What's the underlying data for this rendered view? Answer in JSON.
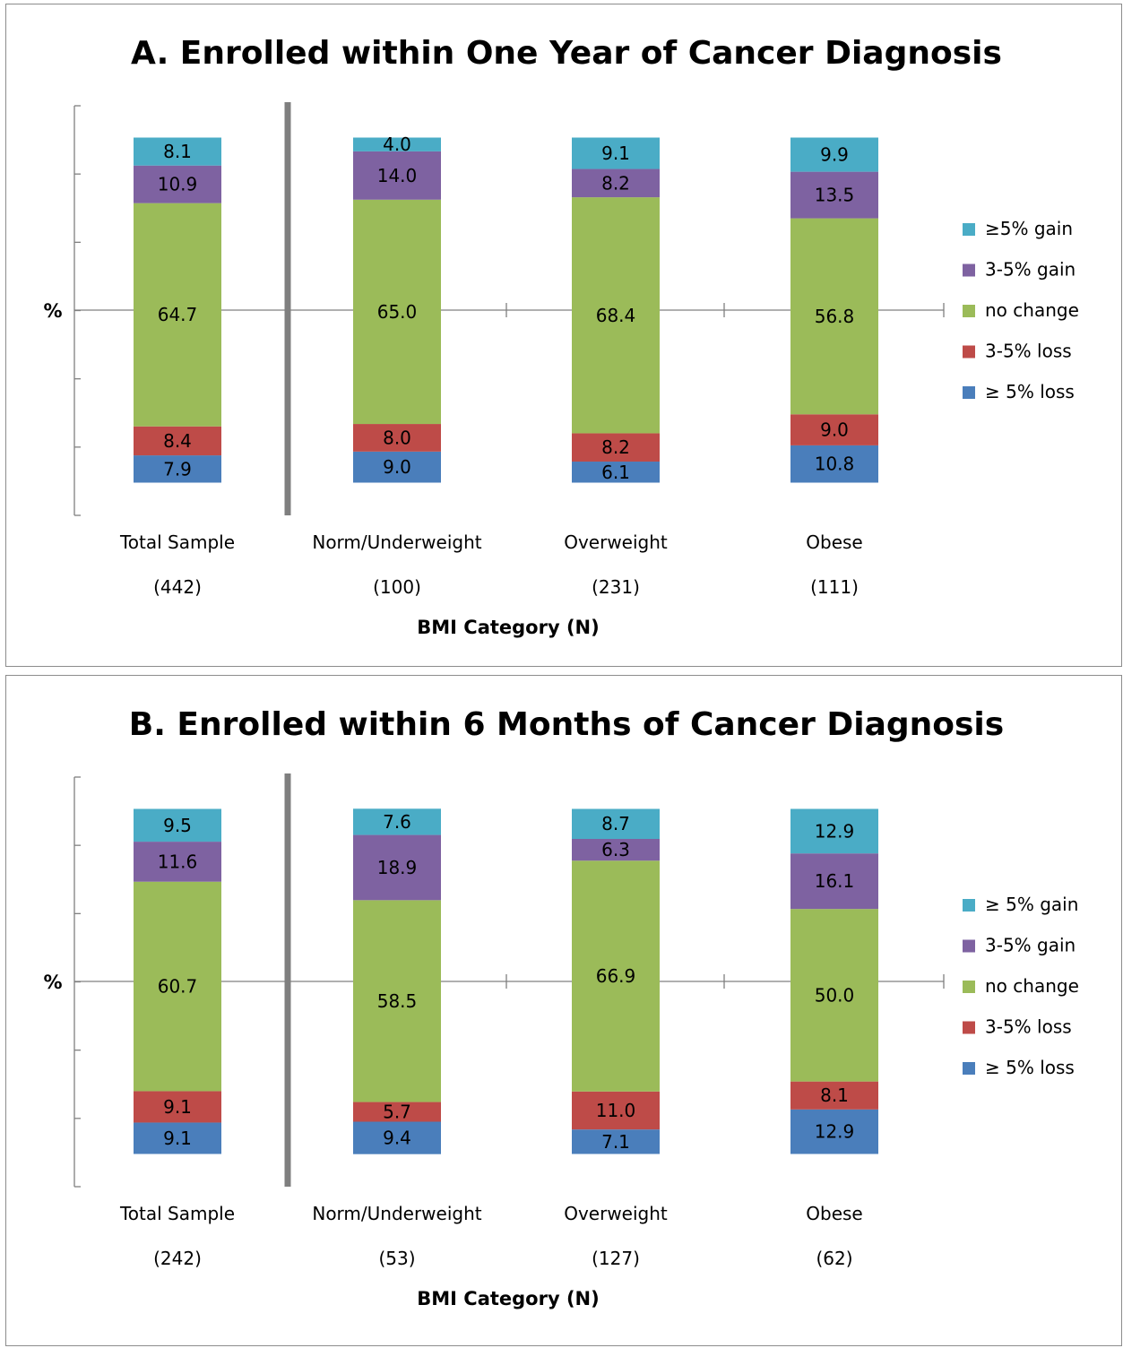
{
  "chart_data": [
    {
      "type": "bar",
      "stacked": true,
      "title": "A. Enrolled within One Year of Cancer Diagnosis",
      "ylabel": "%",
      "xlabel": "BMI Category (N)",
      "categories": [
        "Total Sample",
        "Norm/Underweight",
        "Overweight",
        "Obese"
      ],
      "category_counts": [
        "(442)",
        "(100)",
        "(231)",
        "(111)"
      ],
      "series": [
        {
          "name": "≥ 5% loss",
          "color": "#4a7ebb",
          "values": [
            7.9,
            9.0,
            6.1,
            10.8
          ]
        },
        {
          "name": "3-5% loss",
          "color": "#be4b48",
          "values": [
            8.4,
            8.0,
            8.2,
            9.0
          ]
        },
        {
          "name": "no change",
          "color": "#9bbb59",
          "values": [
            64.7,
            65.0,
            68.4,
            56.8
          ]
        },
        {
          "name": "3-5% gain",
          "color": "#7e62a1",
          "values": [
            10.9,
            14.0,
            8.2,
            13.5
          ]
        },
        {
          "name": "≥5% gain",
          "color": "#4aacc6",
          "values": [
            8.1,
            4.0,
            9.1,
            9.9
          ]
        }
      ],
      "legend": [
        "≥5% gain",
        "3-5% gain",
        "no change",
        "3-5% loss",
        "≥ 5% loss"
      ],
      "legend_position": "right"
    },
    {
      "type": "bar",
      "stacked": true,
      "title": "B. Enrolled within 6 Months of Cancer Diagnosis",
      "ylabel": "%",
      "xlabel": "BMI Category (N)",
      "categories": [
        "Total Sample",
        "Norm/Underweight",
        "Overweight",
        "Obese"
      ],
      "category_counts": [
        "(242)",
        "(53)",
        "(127)",
        "(62)"
      ],
      "series": [
        {
          "name": "≥ 5% loss",
          "color": "#4a7ebb",
          "values": [
            9.1,
            9.4,
            7.1,
            12.9
          ]
        },
        {
          "name": "3-5% loss",
          "color": "#be4b48",
          "values": [
            9.1,
            5.7,
            11.0,
            8.1
          ]
        },
        {
          "name": "no change",
          "color": "#9bbb59",
          "values": [
            60.7,
            58.5,
            66.9,
            50.0
          ]
        },
        {
          "name": "3-5% gain",
          "color": "#7e62a1",
          "values": [
            11.6,
            18.9,
            6.3,
            16.1
          ]
        },
        {
          "name": "≥ 5% gain",
          "color": "#4aacc6",
          "values": [
            9.5,
            7.6,
            8.7,
            12.9
          ]
        }
      ],
      "legend": [
        "≥ 5% gain",
        "3-5% gain",
        "no change",
        "3-5% loss",
        "≥ 5% loss"
      ],
      "legend_position": "right"
    }
  ]
}
